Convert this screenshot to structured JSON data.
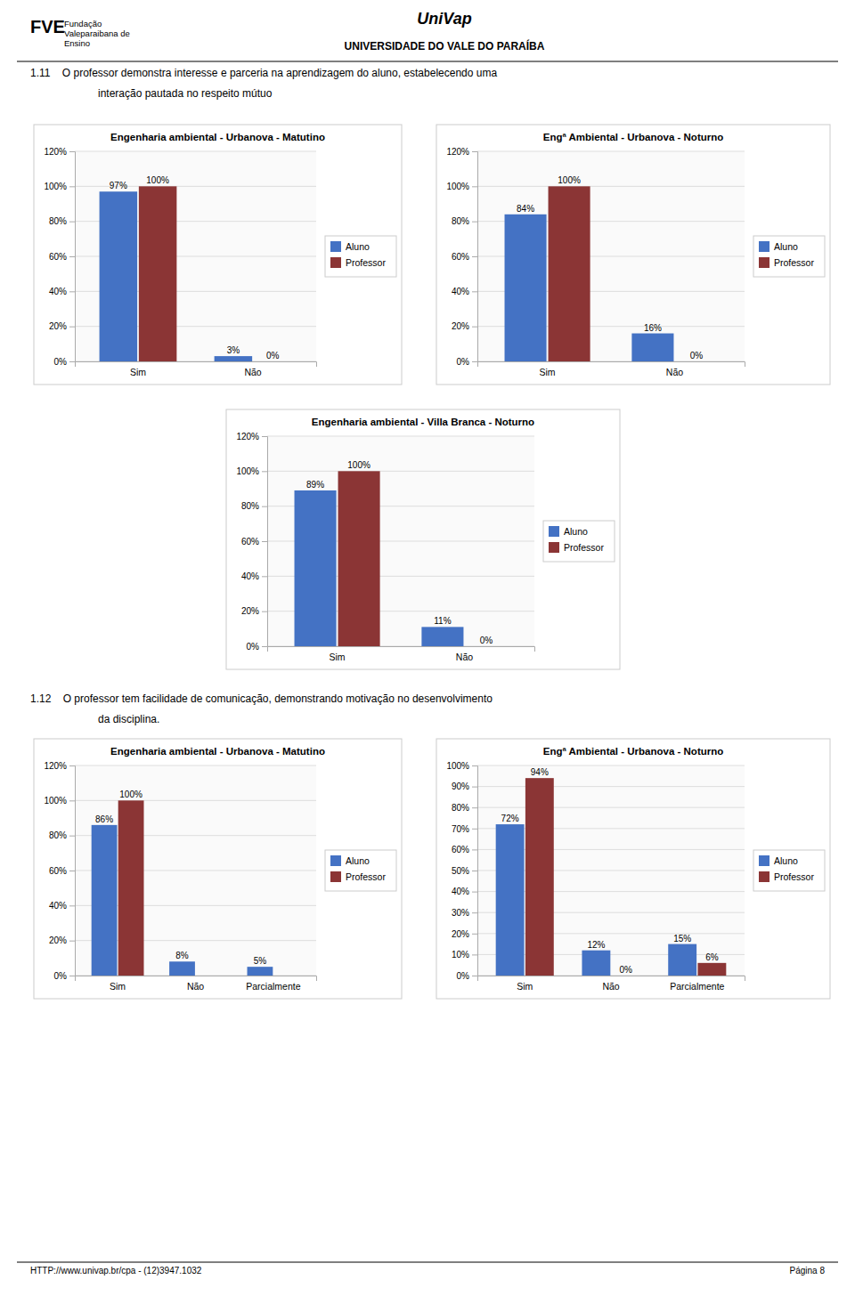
{
  "annotations": [
    "FVE",
    "Fundação\nValeparaibana de\nEnsino",
    "UniVap",
    "UNIVERSIDADE DO VALE DO PARAÍBA",
    "1.11    O professor demonstra interesse e parceria na aprendizagem do aluno, estabelecendo uma",
    "interação pautada no respeito mútuo",
    "1.12    O professor tem facilidade de comunicação, demonstrando motivação no desenvolvimento",
    "da disciplina.",
    "HTTP://www.univap.br/cpa - (12)3947.1032",
    "Página 8"
  ],
  "chart_data": [
    {
      "type": "bar",
      "title": "Engenharia ambiental - Urbanova - Matutino",
      "categories": [
        "Sim",
        "Não"
      ],
      "series": [
        {
          "name": "Aluno",
          "color": "#4472C4",
          "values": [
            97,
            3
          ],
          "value_labels": [
            "97%",
            "3%"
          ]
        },
        {
          "name": "Professor",
          "color": "#8B3535",
          "values": [
            100,
            0
          ],
          "value_labels": [
            "100%",
            "0%"
          ]
        }
      ],
      "ylim": [
        0,
        120
      ],
      "yticks": [
        {
          "value": 0,
          "label": "0%"
        },
        {
          "value": 20,
          "label": "20%"
        },
        {
          "value": 40,
          "label": "40%"
        },
        {
          "value": 60,
          "label": "60%"
        },
        {
          "value": 80,
          "label": "80%"
        },
        {
          "value": 100,
          "label": "100%"
        },
        {
          "value": 120,
          "label": "120%"
        }
      ],
      "grid": true,
      "legend": "right",
      "data_labels": true
    },
    {
      "type": "bar",
      "title": "Engª Ambiental - Urbanova - Noturno",
      "categories": [
        "Sim",
        "Não"
      ],
      "series": [
        {
          "name": "Aluno",
          "color": "#4472C4",
          "values": [
            84,
            16
          ],
          "value_labels": [
            "84%",
            "16%"
          ]
        },
        {
          "name": "Professor",
          "color": "#8B3535",
          "values": [
            100,
            0
          ],
          "value_labels": [
            "100%",
            "0%"
          ]
        }
      ],
      "ylim": [
        0,
        120
      ],
      "yticks": [
        {
          "value": 0,
          "label": "0%"
        },
        {
          "value": 20,
          "label": "20%"
        },
        {
          "value": 40,
          "label": "40%"
        },
        {
          "value": 60,
          "label": "60%"
        },
        {
          "value": 80,
          "label": "80%"
        },
        {
          "value": 100,
          "label": "100%"
        },
        {
          "value": 120,
          "label": "120%"
        }
      ],
      "grid": true,
      "legend": "right",
      "data_labels": true
    },
    {
      "type": "bar",
      "title": "Engenharia ambiental - Villa Branca - Noturno",
      "categories": [
        "Sim",
        "Não"
      ],
      "series": [
        {
          "name": "Aluno",
          "color": "#4472C4",
          "values": [
            89,
            11
          ],
          "value_labels": [
            "89%",
            "11%"
          ]
        },
        {
          "name": "Professor",
          "color": "#8B3535",
          "values": [
            100,
            0
          ],
          "value_labels": [
            "100%",
            "0%"
          ]
        }
      ],
      "ylim": [
        0,
        120
      ],
      "yticks": [
        {
          "value": 0,
          "label": "0%"
        },
        {
          "value": 20,
          "label": "20%"
        },
        {
          "value": 40,
          "label": "40%"
        },
        {
          "value": 60,
          "label": "60%"
        },
        {
          "value": 80,
          "label": "80%"
        },
        {
          "value": 100,
          "label": "100%"
        },
        {
          "value": 120,
          "label": "120%"
        }
      ],
      "grid": true,
      "legend": "right",
      "data_labels": true
    },
    {
      "type": "bar",
      "title": "Engenharia ambiental - Urbanova - Matutino",
      "categories": [
        "Sim",
        "Não",
        "Parcialmente"
      ],
      "series": [
        {
          "name": "Aluno",
          "color": "#4472C4",
          "values": [
            86,
            8,
            5
          ],
          "value_labels": [
            "86%",
            "8%",
            "5%"
          ]
        },
        {
          "name": "Professor",
          "color": "#8B3535",
          "values": [
            100,
            0,
            0
          ],
          "value_labels": [
            "100%",
            null,
            null
          ]
        }
      ],
      "ylim": [
        0,
        120
      ],
      "yticks": [
        {
          "value": 0,
          "label": "0%"
        },
        {
          "value": 20,
          "label": "20%"
        },
        {
          "value": 40,
          "label": "40%"
        },
        {
          "value": 60,
          "label": "60%"
        },
        {
          "value": 80,
          "label": "80%"
        },
        {
          "value": 100,
          "label": "100%"
        },
        {
          "value": 120,
          "label": "120%"
        }
      ],
      "grid": true,
      "legend": "right",
      "data_labels": true
    },
    {
      "type": "bar",
      "title": "Engª Ambiental - Urbanova - Noturno",
      "categories": [
        "Sim",
        "Não",
        "Parcialmente"
      ],
      "series": [
        {
          "name": "Aluno",
          "color": "#4472C4",
          "values": [
            72,
            12,
            15
          ],
          "value_labels": [
            "72%",
            "12%",
            "15%"
          ]
        },
        {
          "name": "Professor",
          "color": "#8B3535",
          "values": [
            94,
            0,
            6
          ],
          "value_labels": [
            "94%",
            "0%",
            "6%"
          ]
        }
      ],
      "ylim": [
        0,
        100
      ],
      "yticks": [
        {
          "value": 0,
          "label": "0%"
        },
        {
          "value": 10,
          "label": "10%"
        },
        {
          "value": 20,
          "label": "20%"
        },
        {
          "value": 30,
          "label": "30%"
        },
        {
          "value": 40,
          "label": "40%"
        },
        {
          "value": 50,
          "label": "50%"
        },
        {
          "value": 60,
          "label": "60%"
        },
        {
          "value": 70,
          "label": "70%"
        },
        {
          "value": 80,
          "label": "80%"
        },
        {
          "value": 90,
          "label": "90%"
        },
        {
          "value": 100,
          "label": "100%"
        }
      ],
      "grid": true,
      "legend": "right",
      "data_labels": true
    }
  ]
}
